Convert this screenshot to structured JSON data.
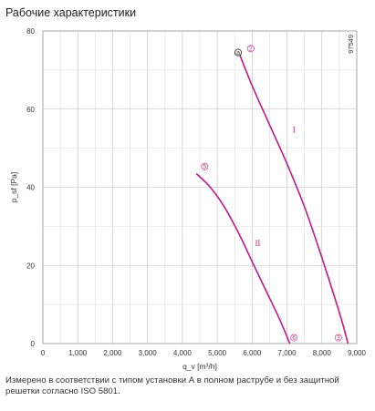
{
  "header": {
    "title": "Рабочие характеристики"
  },
  "footer": {
    "note": "Измерено в соответствии с типом установки А в полном раструбе и без защитной решетки согласно ISO 5801."
  },
  "chart_data": {
    "type": "line",
    "xlabel": "q_v [m³/h]",
    "ylabel": "p_sf [Pa]",
    "xlim": [
      0,
      9000
    ],
    "ylim": [
      0,
      80
    ],
    "x_ticks": [
      0,
      1000,
      2000,
      3000,
      4000,
      5000,
      6000,
      7000,
      8000,
      9000
    ],
    "x_tick_labels": [
      "0",
      "1,000",
      "2,000",
      "3,000",
      "4,000",
      "5,000",
      "6,000",
      "7,000",
      "8,000",
      "9,000"
    ],
    "y_ticks": [
      0,
      20,
      40,
      60,
      80
    ],
    "y_tick_labels": [
      "0",
      "20",
      "40",
      "60",
      "80"
    ],
    "grid": true,
    "figure_code": "97549",
    "curve_color": "#c2188e",
    "series": [
      {
        "name": "I",
        "points": [
          [
            5640,
            74
          ],
          [
            6000,
            66
          ],
          [
            6500,
            56
          ],
          [
            7000,
            46
          ],
          [
            7500,
            35
          ],
          [
            8000,
            22
          ],
          [
            8500,
            8
          ],
          [
            8750,
            0
          ]
        ]
      },
      {
        "name": "II",
        "points": [
          [
            4400,
            43.5
          ],
          [
            4800,
            40
          ],
          [
            5200,
            35
          ],
          [
            5600,
            28.5
          ],
          [
            6000,
            21
          ],
          [
            6400,
            13.5
          ],
          [
            6800,
            6
          ],
          [
            7080,
            0
          ]
        ]
      }
    ],
    "point_markers": [
      {
        "label": "a",
        "x": 5600,
        "y": 74.5,
        "style": "dark"
      },
      {
        "label": "2",
        "x": 5960,
        "y": 75.5,
        "style": "accent"
      },
      {
        "label": "5",
        "x": 4640,
        "y": 45.3,
        "style": "accent"
      },
      {
        "label": "6",
        "x": 7200,
        "y": 1.5,
        "style": "accent"
      },
      {
        "label": "3",
        "x": 8470,
        "y": 1.5,
        "style": "accent"
      }
    ],
    "curve_labels": [
      {
        "label": "I",
        "x": 7200,
        "y": 54
      },
      {
        "label": "II",
        "x": 6160,
        "y": 25
      }
    ]
  }
}
